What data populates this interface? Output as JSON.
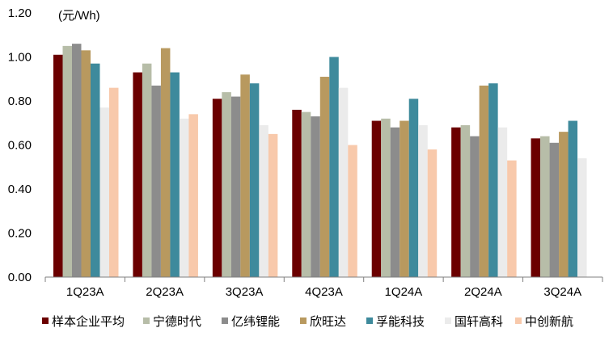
{
  "chart_data": {
    "type": "bar",
    "unit_label": "(元/Wh)",
    "ylim": [
      0,
      1.2
    ],
    "yticks": [
      "0.00",
      "0.20",
      "0.40",
      "0.60",
      "0.80",
      "1.00",
      "1.20"
    ],
    "grid": false,
    "legend_position": "bottom",
    "categories": [
      "1Q23A",
      "2Q23A",
      "3Q23A",
      "4Q23A",
      "1Q24A",
      "2Q24A",
      "3Q24A"
    ],
    "series": [
      {
        "name": "样本企业平均",
        "color": "#6b0000",
        "values": [
          1.01,
          0.93,
          0.81,
          0.76,
          0.71,
          0.68,
          0.63
        ]
      },
      {
        "name": "宁德时代",
        "color": "#b7bda8",
        "values": [
          1.05,
          0.97,
          0.84,
          0.75,
          0.72,
          0.69,
          0.64
        ]
      },
      {
        "name": "亿纬锂能",
        "color": "#8c8c8c",
        "values": [
          1.06,
          0.87,
          0.82,
          0.73,
          0.68,
          0.64,
          0.61
        ]
      },
      {
        "name": "欣旺达",
        "color": "#b8995f",
        "values": [
          1.03,
          1.04,
          0.92,
          0.91,
          0.71,
          0.87,
          0.66
        ]
      },
      {
        "name": "孚能科技",
        "color": "#3e8a9c",
        "values": [
          0.97,
          0.93,
          0.88,
          1.0,
          0.81,
          0.88,
          0.71
        ]
      },
      {
        "name": "国轩高科",
        "color": "#ebebeb",
        "values": [
          0.77,
          0.72,
          0.69,
          0.86,
          0.69,
          0.68,
          0.54
        ]
      },
      {
        "name": "中创新航",
        "color": "#f8c9ab",
        "values": [
          0.86,
          0.74,
          0.65,
          0.6,
          0.58,
          0.53,
          null
        ]
      }
    ]
  }
}
